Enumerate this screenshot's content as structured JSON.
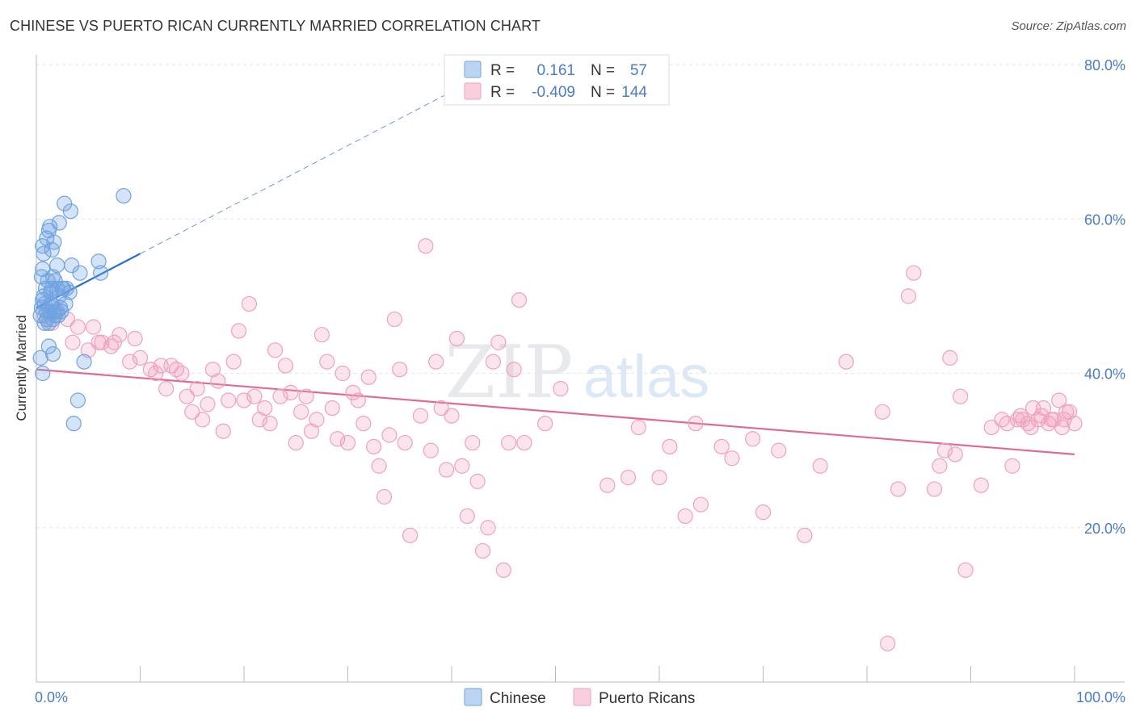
{
  "title": "CHINESE VS PUERTO RICAN CURRENTLY MARRIED CORRELATION CHART",
  "source": "Source: ZipAtlas.com",
  "watermark": {
    "zip": "ZIP",
    "atlas": "atlas"
  },
  "colors": {
    "chinese": "#6fa3e0",
    "chinese_line": "#2a6fd0",
    "puerto": "#f0a0bc",
    "puerto_line": "#e06a96",
    "tick_text": "#4a7cc7",
    "grid": "#e6e6e6"
  },
  "legend": {
    "rows": [
      {
        "r_label": "R =",
        "r_value": "0.161",
        "n_label": "N =",
        "n_value": "57"
      },
      {
        "r_label": "R =",
        "r_value": "-0.409",
        "n_label": "N =",
        "n_value": "144"
      }
    ]
  },
  "chart_data": {
    "type": "scatter",
    "ylabel": "Currently Married",
    "xlim": [
      0,
      100
    ],
    "ylim": [
      0,
      80
    ],
    "x_ticks": [
      "0.0%",
      "100.0%"
    ],
    "y_ticks": [
      {
        "value": 80,
        "label": "80.0%"
      },
      {
        "value": 60,
        "label": "60.0%"
      },
      {
        "value": 40,
        "label": "40.0%"
      },
      {
        "value": 20,
        "label": "20.0%"
      }
    ],
    "grid": true,
    "legend_position": "top-center",
    "series": [
      {
        "name": "Chinese",
        "trend": {
          "x0": 0,
          "y0": 48.5,
          "x1": 10,
          "y1": 55.5,
          "extend_to_x": 45,
          "extend_y": 80
        },
        "points": [
          [
            0.4,
            47.5
          ],
          [
            0.5,
            48.5
          ],
          [
            0.6,
            49.5
          ],
          [
            0.7,
            50.0
          ],
          [
            0.8,
            46.5
          ],
          [
            0.5,
            52.5
          ],
          [
            0.6,
            53.5
          ],
          [
            0.7,
            55.5
          ],
          [
            0.6,
            56.5
          ],
          [
            1.0,
            57.5
          ],
          [
            1.2,
            58.5
          ],
          [
            1.3,
            59.0
          ],
          [
            1.5,
            56.0
          ],
          [
            1.7,
            57.0
          ],
          [
            2.2,
            59.5
          ],
          [
            2.0,
            54.0
          ],
          [
            1.8,
            52.0
          ],
          [
            2.0,
            51.0
          ],
          [
            2.5,
            51.0
          ],
          [
            2.2,
            50.0
          ],
          [
            1.5,
            49.0
          ],
          [
            1.3,
            48.0
          ],
          [
            1.0,
            47.0
          ],
          [
            1.2,
            46.5
          ],
          [
            1.6,
            47.0
          ],
          [
            2.3,
            48.5
          ],
          [
            2.8,
            49.0
          ],
          [
            3.2,
            50.5
          ],
          [
            2.0,
            48.0
          ],
          [
            1.8,
            47.5
          ],
          [
            1.4,
            50.5
          ],
          [
            0.9,
            51.0
          ],
          [
            1.1,
            52.0
          ],
          [
            1.6,
            52.5
          ],
          [
            2.6,
            51.0
          ],
          [
            2.9,
            51.0
          ],
          [
            3.4,
            54.0
          ],
          [
            4.2,
            53.0
          ],
          [
            6.2,
            53.0
          ],
          [
            6.0,
            54.5
          ],
          [
            2.7,
            62.0
          ],
          [
            3.3,
            61.0
          ],
          [
            8.4,
            63.0
          ],
          [
            0.4,
            42.0
          ],
          [
            0.6,
            40.0
          ],
          [
            1.2,
            43.5
          ],
          [
            1.6,
            42.5
          ],
          [
            4.0,
            36.5
          ],
          [
            3.6,
            33.5
          ],
          [
            4.6,
            41.5
          ],
          [
            1.0,
            48.0
          ],
          [
            1.4,
            49.0
          ],
          [
            0.8,
            49.0
          ],
          [
            2.1,
            47.5
          ],
          [
            1.7,
            48.0
          ],
          [
            1.5,
            51.0
          ],
          [
            2.4,
            48.0
          ]
        ]
      },
      {
        "name": "Puerto Ricans",
        "trend": {
          "x0": 0,
          "y0": 40.5,
          "x1": 100,
          "y1": 29.5
        },
        "points": [
          [
            0.8,
            47.5
          ],
          [
            1.5,
            46.5
          ],
          [
            2.0,
            48.0
          ],
          [
            3.0,
            47.0
          ],
          [
            3.5,
            44.0
          ],
          [
            4.0,
            46.0
          ],
          [
            5.0,
            43.0
          ],
          [
            5.5,
            46.0
          ],
          [
            6.0,
            44.0
          ],
          [
            6.3,
            44.0
          ],
          [
            7.2,
            43.5
          ],
          [
            7.5,
            44.0
          ],
          [
            8.0,
            45.0
          ],
          [
            9.0,
            41.5
          ],
          [
            9.5,
            44.5
          ],
          [
            10.0,
            42.0
          ],
          [
            11.0,
            40.5
          ],
          [
            11.5,
            40.0
          ],
          [
            12.0,
            41.0
          ],
          [
            12.5,
            38.0
          ],
          [
            13.0,
            41.0
          ],
          [
            13.5,
            40.5
          ],
          [
            14.0,
            40.0
          ],
          [
            14.5,
            37.0
          ],
          [
            15.0,
            35.0
          ],
          [
            15.5,
            38.0
          ],
          [
            16.0,
            34.0
          ],
          [
            16.5,
            36.0
          ],
          [
            17.0,
            40.5
          ],
          [
            17.5,
            39.0
          ],
          [
            18.0,
            32.5
          ],
          [
            18.5,
            36.5
          ],
          [
            19.0,
            41.5
          ],
          [
            19.5,
            45.5
          ],
          [
            20.0,
            36.5
          ],
          [
            20.5,
            49.0
          ],
          [
            21.0,
            37.0
          ],
          [
            21.5,
            34.0
          ],
          [
            22.0,
            35.5
          ],
          [
            22.5,
            33.5
          ],
          [
            23.0,
            43.0
          ],
          [
            23.5,
            37.0
          ],
          [
            24.0,
            41.0
          ],
          [
            24.5,
            37.5
          ],
          [
            25.0,
            31.0
          ],
          [
            25.5,
            35.0
          ],
          [
            26.0,
            37.0
          ],
          [
            26.5,
            32.5
          ],
          [
            27.0,
            34.0
          ],
          [
            27.5,
            45.0
          ],
          [
            28.0,
            41.5
          ],
          [
            28.5,
            35.5
          ],
          [
            29.0,
            31.5
          ],
          [
            29.5,
            40.0
          ],
          [
            30.0,
            31.0
          ],
          [
            30.5,
            37.5
          ],
          [
            31.0,
            36.5
          ],
          [
            31.5,
            33.5
          ],
          [
            32.0,
            39.5
          ],
          [
            32.5,
            30.5
          ],
          [
            33.0,
            28.0
          ],
          [
            33.5,
            24.0
          ],
          [
            34.0,
            32.0
          ],
          [
            34.5,
            47.0
          ],
          [
            35.0,
            40.5
          ],
          [
            35.5,
            31.0
          ],
          [
            36.0,
            19.0
          ],
          [
            37.0,
            34.5
          ],
          [
            37.5,
            56.5
          ],
          [
            38.0,
            30.0
          ],
          [
            38.5,
            41.5
          ],
          [
            39.0,
            35.5
          ],
          [
            39.5,
            27.5
          ],
          [
            40.0,
            34.5
          ],
          [
            40.5,
            44.5
          ],
          [
            41.0,
            28.0
          ],
          [
            41.5,
            21.5
          ],
          [
            42.0,
            31.0
          ],
          [
            42.5,
            26.0
          ],
          [
            43.0,
            17.0
          ],
          [
            43.5,
            20.0
          ],
          [
            44.0,
            41.5
          ],
          [
            44.5,
            44.0
          ],
          [
            45.0,
            14.5
          ],
          [
            45.5,
            31.0
          ],
          [
            46.0,
            40.5
          ],
          [
            46.5,
            49.5
          ],
          [
            47.0,
            31.0
          ],
          [
            49.0,
            33.5
          ],
          [
            50.5,
            38.0
          ],
          [
            55.0,
            25.5
          ],
          [
            57.0,
            26.5
          ],
          [
            58.0,
            33.0
          ],
          [
            60.0,
            26.5
          ],
          [
            61.0,
            30.5
          ],
          [
            62.5,
            21.5
          ],
          [
            63.5,
            33.5
          ],
          [
            64.0,
            23.0
          ],
          [
            66.0,
            30.5
          ],
          [
            67.0,
            29.0
          ],
          [
            69.0,
            31.5
          ],
          [
            70.0,
            22.0
          ],
          [
            71.5,
            30.0
          ],
          [
            74.0,
            19.0
          ],
          [
            75.5,
            28.0
          ],
          [
            78.0,
            41.5
          ],
          [
            81.5,
            35.0
          ],
          [
            82.0,
            5.0
          ],
          [
            83.0,
            25.0
          ],
          [
            84.0,
            50.0
          ],
          [
            84.5,
            53.0
          ],
          [
            86.5,
            25.0
          ],
          [
            87.0,
            28.0
          ],
          [
            87.5,
            30.0
          ],
          [
            88.0,
            42.0
          ],
          [
            88.5,
            29.5
          ],
          [
            89.0,
            37.0
          ],
          [
            89.5,
            14.5
          ],
          [
            91.0,
            25.5
          ],
          [
            92.0,
            33.0
          ],
          [
            93.0,
            34.0
          ],
          [
            93.5,
            33.5
          ],
          [
            94.0,
            28.0
          ],
          [
            94.5,
            34.0
          ],
          [
            95.0,
            34.0
          ],
          [
            95.5,
            33.5
          ],
          [
            96.0,
            35.5
          ],
          [
            96.5,
            34.0
          ],
          [
            97.0,
            35.5
          ],
          [
            97.5,
            33.5
          ],
          [
            98.0,
            34.0
          ],
          [
            98.5,
            36.5
          ],
          [
            99.0,
            34.0
          ],
          [
            99.5,
            35.0
          ],
          [
            100.0,
            33.5
          ],
          [
            96.8,
            34.5
          ],
          [
            97.8,
            34.0
          ],
          [
            98.8,
            33.0
          ],
          [
            99.2,
            35.0
          ],
          [
            95.8,
            33.0
          ],
          [
            94.8,
            34.5
          ]
        ]
      }
    ]
  }
}
